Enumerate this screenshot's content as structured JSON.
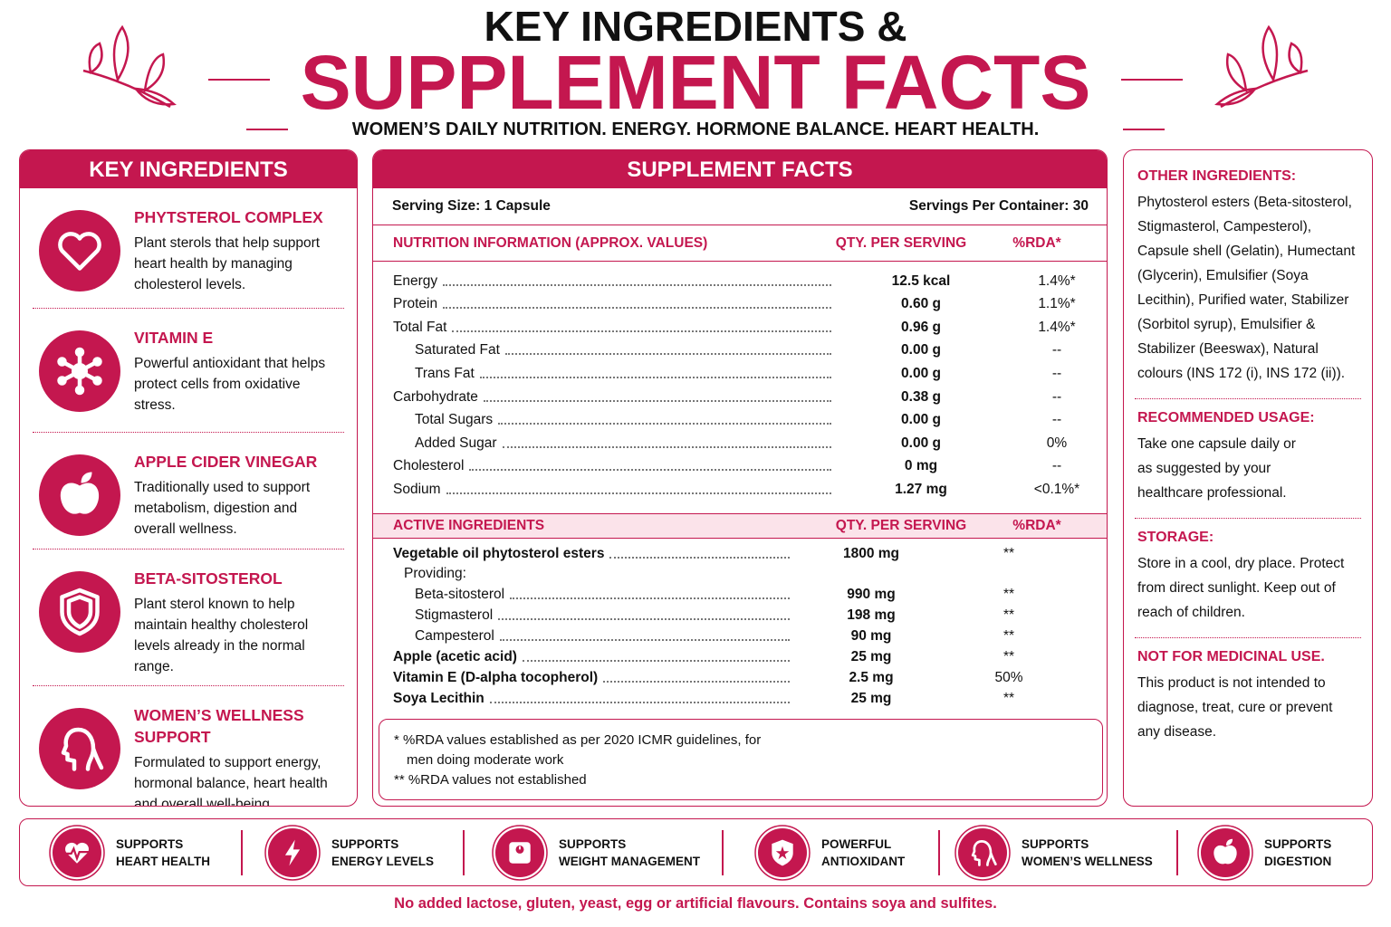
{
  "header": {
    "title_line1": "KEY INGREDIENTS &",
    "title_line2": "SUPPLEMENT FACTS",
    "subtitle": "WOMEN’S DAILY NUTRITION. ENERGY. HORMONE BALANCE. HEART HEALTH."
  },
  "key_ingredients": {
    "heading": "KEY INGREDIENTS",
    "items": [
      {
        "icon": "heart",
        "name": "PHYTSTEROL COMPLEX",
        "description": "Plant sterols that help support heart health by managing cholesterol levels."
      },
      {
        "icon": "molecule",
        "name": "VITAMIN E",
        "description": "Powerful antioxidant that helps protect cells from oxidative stress."
      },
      {
        "icon": "apple",
        "name": "APPLE CIDER VINEGAR",
        "description": "Traditionally used to support metabolism, digestion and overall wellness."
      },
      {
        "icon": "shield",
        "name": "BETA-SITOSTEROL",
        "description": "Plant sterol known to help maintain healthy cholesterol levels already in the normal range."
      },
      {
        "icon": "woman",
        "name": "WOMEN’S WELLNESS SUPPORT",
        "description": "Formulated to support energy, hormonal balance, heart health and overall well-being."
      }
    ]
  },
  "supplement_facts": {
    "heading": "SUPPLEMENT FACTS",
    "serving_size": "Serving Size: 1 Capsule",
    "servings_per_container": "Servings Per Container: 30",
    "nutrition": {
      "headers": [
        "NUTRITION INFORMATION (APPROX. VALUES)",
        "QTY. PER SERVING",
        "%RDA*"
      ],
      "rows": [
        {
          "name": "Energy",
          "qty": "12.5 kcal",
          "rda": "1.4%*"
        },
        {
          "name": "Protein",
          "qty": "0.60 g",
          "rda": "1.1%*"
        },
        {
          "name": "Total Fat",
          "qty": "0.96 g",
          "rda": "1.4%*",
          "sub_rows": [
            {
              "name": "Saturated Fat",
              "qty": "0.00 g",
              "rda": "--"
            },
            {
              "name": "Trans Fat",
              "qty": "0.00 g",
              "rda": "--"
            }
          ]
        },
        {
          "name": "Carbohydrate",
          "qty": "0.38 g",
          "rda": "--",
          "sub_rows": [
            {
              "name": "Total Sugars",
              "qty": "0.00 g",
              "rda": "--"
            },
            {
              "name": "Added Sugar",
              "qty": "0.00 g",
              "rda": "0%"
            }
          ]
        },
        {
          "name": "Cholesterol",
          "qty": "0 mg",
          "rda": "--"
        },
        {
          "name": "Sodium",
          "qty": "1.27 mg",
          "rda": "<0.1%*"
        }
      ]
    },
    "active": {
      "headers": [
        "ACTIVE INGREDIENTS",
        "QTY. PER SERVING",
        "%RDA*"
      ],
      "rows": [
        {
          "name": "Vegetable oil phytosterol esters",
          "qty": "1800 mg",
          "rda": "**",
          "note": "Providing:",
          "sub_rows": [
            {
              "name": "Beta-sitosterol",
              "qty": "990 mg",
              "rda": "**"
            },
            {
              "name": "Stigmasterol",
              "qty": "198 mg",
              "rda": "**"
            },
            {
              "name": "Campesterol",
              "qty": "90 mg",
              "rda": "**"
            }
          ]
        },
        {
          "name": "Apple (acetic acid)",
          "qty": "25 mg",
          "rda": "**"
        },
        {
          "name": "Vitamin E (D-alpha tocopherol)",
          "qty": "2.5 mg",
          "rda": "50%"
        },
        {
          "name": "Soya Lecithin",
          "qty": "25 mg",
          "rda": "**"
        }
      ]
    },
    "footnotes": [
      "* %RDA values established as per 2020 ICMR guidelines, for men doing moderate work",
      "** %RDA values not established"
    ]
  },
  "other": {
    "sections": [
      {
        "heading": "OTHER INGREDIENTS:",
        "text": "Phytosterol esters (Beta-sitosterol, Stigmasterol, Campesterol), Capsule shell (Gelatin), Humectant (Glycerin), Emulsifier (Soya Lecithin), Purified water, Stabilizer (Sorbitol syrup), Emulsifier & Stabilizer (Beeswax), Natural colours (INS 172 (i), INS 172 (ii))."
      },
      {
        "heading": "RECOMMENDED USAGE:",
        "text": "Take one capsule daily or as suggested by your healthcare professional."
      },
      {
        "heading": "STORAGE:",
        "text": "Store in a cool, dry place. Protect from direct sunlight. Keep out of reach of children."
      },
      {
        "heading": "NOT FOR MEDICINAL USE.",
        "text": "This product is not intended to diagnose, treat, cure or prevent any disease."
      }
    ]
  },
  "benefits": [
    {
      "icon": "pulse",
      "line1": "SUPPORTS",
      "line2": "HEART HEALTH"
    },
    {
      "icon": "bolt",
      "line1": "SUPPORTS",
      "line2": "ENERGY LEVELS"
    },
    {
      "icon": "scale",
      "line1": "SUPPORTS",
      "line2": "WEIGHT MANAGEMENT"
    },
    {
      "icon": "shieldstar",
      "line1": "POWERFUL",
      "line2": "ANTIOXIDANT"
    },
    {
      "icon": "woman",
      "line1": "SUPPORTS",
      "line2": "WOMEN’S WELLNESS"
    },
    {
      "icon": "apple",
      "line1": "SUPPORTS",
      "line2": "DIGESTION"
    }
  ],
  "footer": "No added lactose, gluten, yeast, egg or artificial flavours. Contains soya and sulfites."
}
